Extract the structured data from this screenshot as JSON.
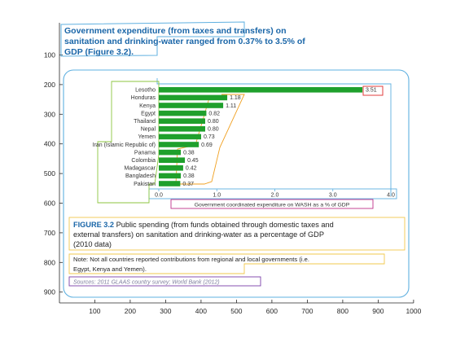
{
  "headline": {
    "lines": [
      "Government expenditure (from taxes and transfers) on",
      "sanitation and drinking-water ranged from 0.37% to 3.5% of",
      "GDP (Figure 3.2)."
    ]
  },
  "outer_axes": {
    "y_ticks": [
      "100",
      "200",
      "300",
      "400",
      "500",
      "600",
      "700",
      "800",
      "900"
    ],
    "x_ticks": [
      "100",
      "200",
      "300",
      "400",
      "500",
      "600",
      "700",
      "800",
      "900",
      "1000"
    ]
  },
  "chart_data": {
    "type": "bar",
    "orientation": "horizontal",
    "categories": [
      "Lesotho",
      "Honduras",
      "Kenya",
      "Egypt",
      "Thailand",
      "Nepal",
      "Yemen",
      "Iran (Islamic Republic of)",
      "Panama",
      "Colombia",
      "Madagascar",
      "Bangladesh",
      "Pakistan"
    ],
    "values": [
      3.51,
      1.18,
      1.11,
      0.82,
      0.8,
      0.8,
      0.73,
      0.69,
      0.38,
      0.45,
      0.42,
      0.38,
      0.37
    ],
    "value_labels": [
      "3.51",
      "1.18",
      "1.11",
      "0.82",
      "0.80",
      "0.80",
      "0.73",
      "0.69",
      "0.38",
      "0.45",
      "0.42",
      "0.38",
      "0.37"
    ],
    "x_ticks": [
      "0.0",
      "1.0",
      "2.0",
      "3.0",
      "4.0"
    ],
    "xlim": [
      0,
      4
    ],
    "xlabel": "Government coordinated expenditure on WASH as a % of GDP",
    "bar_color": "#1fa02c",
    "grid": false
  },
  "figure": {
    "lines": [
      {
        "bold": "FIGURE 3.2",
        "text": " Public spending (from funds obtained through domestic taxes and"
      },
      {
        "bold": "",
        "text": "external transfers) on sanitation and drinking-water as a percentage of GDP"
      },
      {
        "bold": "",
        "text": "(2010 data)"
      }
    ]
  },
  "note": {
    "lines": [
      "Note: Not all countries reported contributions from regional and local governments (i.e.",
      "Egypt, Kenya and Yemen)."
    ]
  },
  "source": "Sources: 2011 GLAAS country survey; World Bank (2012)",
  "colors": {
    "headline": "#1a66a8",
    "bars": "#1fa02c",
    "panel_border": "#5fb0e0",
    "label_box_green": "#8cc63f",
    "value_box_orange": "#f0a020",
    "value_box_red": "#e03c3c",
    "xlabel_box_magenta": "#c0308a",
    "note_box_yellow": "#f2c94c",
    "source_box_purple": "#7b3fa8"
  }
}
